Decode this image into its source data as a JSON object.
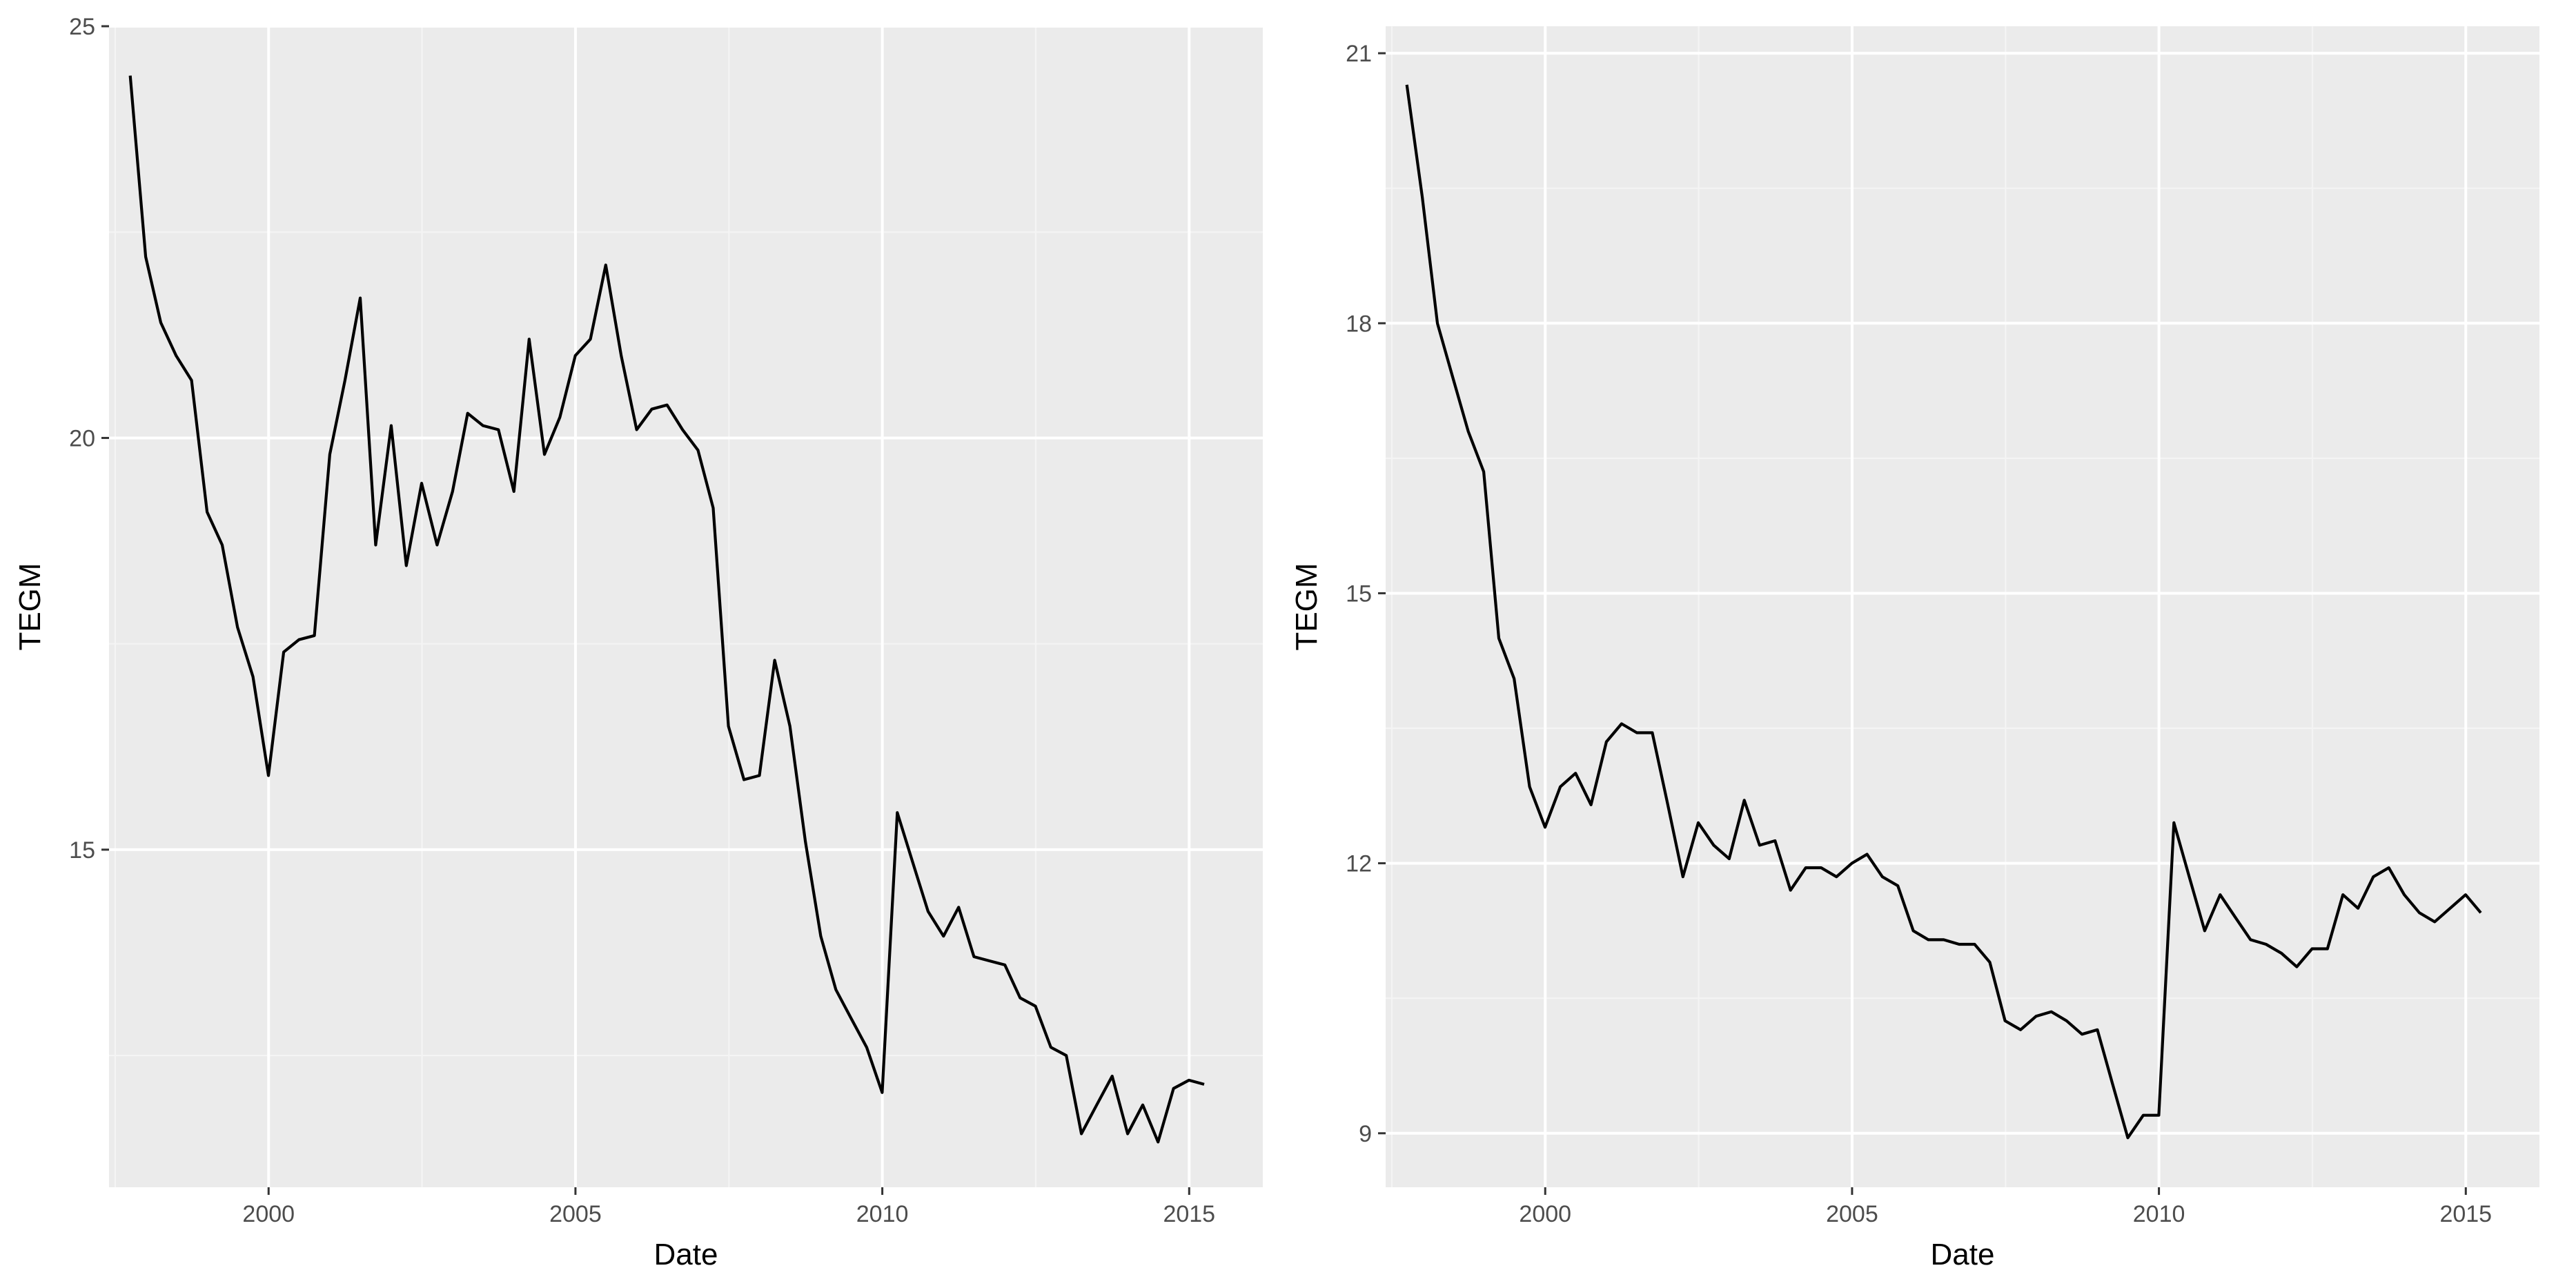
{
  "colors": {
    "panel_background": "#EBEBEB",
    "grid_major": "#FFFFFF",
    "grid_minor": "#F4F4F4",
    "line": "#000000",
    "tick": "#333333",
    "tick_label": "#4D4D4D"
  },
  "chart_data": [
    {
      "type": "line",
      "title": "",
      "xlabel": "Date",
      "ylabel": "TEGM",
      "grid": true,
      "xlim": [
        1997.4,
        2016.2
      ],
      "ylim": [
        10.9,
        25.0
      ],
      "x_ticks": [
        2000,
        2005,
        2010,
        2015
      ],
      "x_tick_labels": [
        "2000",
        "2005",
        "2010",
        "2015"
      ],
      "y_ticks": [
        15,
        20,
        25
      ],
      "y_tick_labels": [
        "15",
        "20",
        "25"
      ],
      "series": [
        {
          "x": [
            "1997-09-30",
            "1997-12-31",
            "1998-03-31",
            "1998-06-30",
            "1998-09-30",
            "1998-12-31",
            "1999-03-31",
            "1999-06-30",
            "1999-09-30",
            "1999-12-31",
            "2000-03-31",
            "2000-06-30",
            "2000-09-30",
            "2000-12-31",
            "2001-03-31",
            "2001-06-30",
            "2001-09-30",
            "2001-12-31",
            "2002-03-31",
            "2002-06-30",
            "2002-09-30",
            "2002-12-31",
            "2003-03-31",
            "2003-06-30",
            "2003-09-30",
            "2003-12-31",
            "2004-03-31",
            "2004-06-30",
            "2004-09-30",
            "2004-12-31",
            "2005-03-31",
            "2005-06-30",
            "2005-09-30",
            "2005-12-31",
            "2006-03-31",
            "2006-06-30",
            "2006-09-30",
            "2006-12-31",
            "2007-03-31",
            "2007-06-30",
            "2007-09-30",
            "2007-12-31",
            "2008-03-31",
            "2008-06-30",
            "2008-09-30",
            "2008-12-31",
            "2009-03-31",
            "2009-06-30",
            "2009-09-30",
            "2009-12-31",
            "2010-03-31",
            "2010-06-30",
            "2010-09-30",
            "2010-12-31",
            "2011-03-31",
            "2011-06-30",
            "2011-09-30",
            "2011-12-31",
            "2012-03-31",
            "2012-06-30",
            "2012-09-30",
            "2012-12-31",
            "2013-03-31",
            "2013-06-30",
            "2013-09-30",
            "2013-12-31",
            "2014-03-31",
            "2014-06-30",
            "2014-09-30",
            "2014-12-31",
            "2015-03-31"
          ],
          "values": [
            24.4,
            22.2,
            21.4,
            21.0,
            20.7,
            19.1,
            18.7,
            17.7,
            17.1,
            15.9,
            17.4,
            17.55,
            17.6,
            19.8,
            20.7,
            21.7,
            18.7,
            20.15,
            18.45,
            19.45,
            18.7,
            19.35,
            20.3,
            20.15,
            20.1,
            19.35,
            21.2,
            19.8,
            20.25,
            21.0,
            21.2,
            22.1,
            21.0,
            20.1,
            20.35,
            20.4,
            20.1,
            19.85,
            19.15,
            16.5,
            15.85,
            15.9,
            17.3,
            16.5,
            15.1,
            13.95,
            13.3,
            12.95,
            12.6,
            12.05,
            15.45,
            14.85,
            14.25,
            13.95,
            14.3,
            13.7,
            13.65,
            13.6,
            13.2,
            13.1,
            12.6,
            12.5,
            11.55,
            11.9,
            12.25,
            11.55,
            11.9,
            11.45,
            12.1,
            12.2,
            12.15
          ]
        }
      ]
    },
    {
      "type": "line",
      "title": "",
      "xlabel": "Date",
      "ylabel": "TEGM",
      "grid": true,
      "xlim": [
        1997.4,
        2016.2
      ],
      "ylim": [
        8.4,
        21.3
      ],
      "x_ticks": [
        2000,
        2005,
        2010,
        2015
      ],
      "x_tick_labels": [
        "2000",
        "2005",
        "2010",
        "2015"
      ],
      "y_ticks": [
        9,
        12,
        15,
        18,
        21
      ],
      "y_tick_labels": [
        "9",
        "12",
        "15",
        "18",
        "21"
      ],
      "series": [
        {
          "x": [
            "1997-09-30",
            "1997-12-31",
            "1998-03-31",
            "1998-06-30",
            "1998-09-30",
            "1998-12-31",
            "1999-03-31",
            "1999-06-30",
            "1999-09-30",
            "1999-12-31",
            "2000-03-31",
            "2000-06-30",
            "2000-09-30",
            "2000-12-31",
            "2001-03-31",
            "2001-06-30",
            "2001-09-30",
            "2001-12-31",
            "2002-03-31",
            "2002-06-30",
            "2002-09-30",
            "2002-12-31",
            "2003-03-31",
            "2003-06-30",
            "2003-09-30",
            "2003-12-31",
            "2004-03-31",
            "2004-06-30",
            "2004-09-30",
            "2004-12-31",
            "2005-03-31",
            "2005-06-30",
            "2005-09-30",
            "2005-12-31",
            "2006-03-31",
            "2006-06-30",
            "2006-09-30",
            "2006-12-31",
            "2007-03-31",
            "2007-06-30",
            "2007-09-30",
            "2007-12-31",
            "2008-03-31",
            "2008-06-30",
            "2008-09-30",
            "2008-12-31",
            "2009-03-31",
            "2009-06-30",
            "2009-09-30",
            "2009-12-31",
            "2010-03-31",
            "2010-06-30",
            "2010-09-30",
            "2010-12-31",
            "2011-03-31",
            "2011-06-30",
            "2011-09-30",
            "2011-12-31",
            "2012-03-31",
            "2012-06-30",
            "2012-09-30",
            "2012-12-31",
            "2013-03-31",
            "2013-06-30",
            "2013-09-30",
            "2013-12-31",
            "2014-03-31",
            "2014-06-30",
            "2014-09-30",
            "2014-12-31",
            "2015-03-31"
          ],
          "values": [
            20.65,
            19.4,
            18.0,
            17.4,
            16.8,
            16.35,
            14.5,
            14.05,
            12.85,
            12.4,
            12.85,
            13.0,
            12.65,
            13.35,
            13.55,
            13.45,
            13.45,
            12.65,
            11.85,
            12.45,
            12.2,
            12.05,
            12.7,
            12.2,
            12.25,
            11.7,
            11.95,
            11.95,
            11.85,
            12.0,
            12.1,
            11.85,
            11.75,
            11.25,
            11.15,
            11.15,
            11.1,
            11.1,
            10.9,
            10.25,
            10.15,
            10.3,
            10.35,
            10.25,
            10.1,
            10.15,
            9.55,
            8.95,
            9.2,
            9.2,
            12.45,
            11.85,
            11.25,
            11.65,
            11.4,
            11.15,
            11.1,
            11.0,
            10.85,
            11.05,
            11.05,
            11.65,
            11.5,
            11.85,
            11.95,
            11.65,
            11.45,
            11.35,
            11.5,
            11.65,
            11.45
          ]
        }
      ]
    }
  ]
}
